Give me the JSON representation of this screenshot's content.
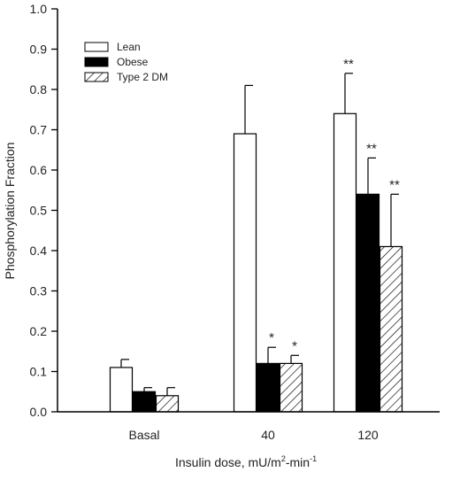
{
  "chart_data": {
    "type": "bar",
    "categories": [
      "Basal",
      "40",
      "120"
    ],
    "series": [
      {
        "name": "Lean",
        "values": [
          0.11,
          0.69,
          0.74
        ],
        "errors": [
          0.02,
          0.12,
          0.1
        ],
        "significance": [
          "",
          "",
          "**"
        ],
        "fill": "white"
      },
      {
        "name": "Obese",
        "values": [
          0.05,
          0.12,
          0.54
        ],
        "errors": [
          0.01,
          0.04,
          0.09
        ],
        "significance": [
          "",
          "*",
          "**"
        ],
        "fill": "black"
      },
      {
        "name": "Type 2 DM",
        "values": [
          0.04,
          0.12,
          0.41
        ],
        "errors": [
          0.02,
          0.02,
          0.13
        ],
        "significance": [
          "",
          "*",
          "**"
        ],
        "fill": "hatched"
      }
    ],
    "ylim": [
      0,
      1.0
    ],
    "yticks": [
      "0.0",
      "0.1",
      "0.2",
      "0.3",
      "0.4",
      "0.5",
      "0.6",
      "0.7",
      "0.8",
      "0.9",
      "1.0"
    ],
    "ylabel": "Phosphorylation Fraction",
    "xlabel": "Insulin dose, mU/m",
    "xlabel_sup1": "2",
    "xlabel_mid": "-min",
    "xlabel_sup2": "-1",
    "legend_position": "top-left",
    "colors": {
      "axis": "#000000",
      "bar_stroke": "#000000",
      "obese_fill": "#000000",
      "text": "#222222"
    }
  }
}
